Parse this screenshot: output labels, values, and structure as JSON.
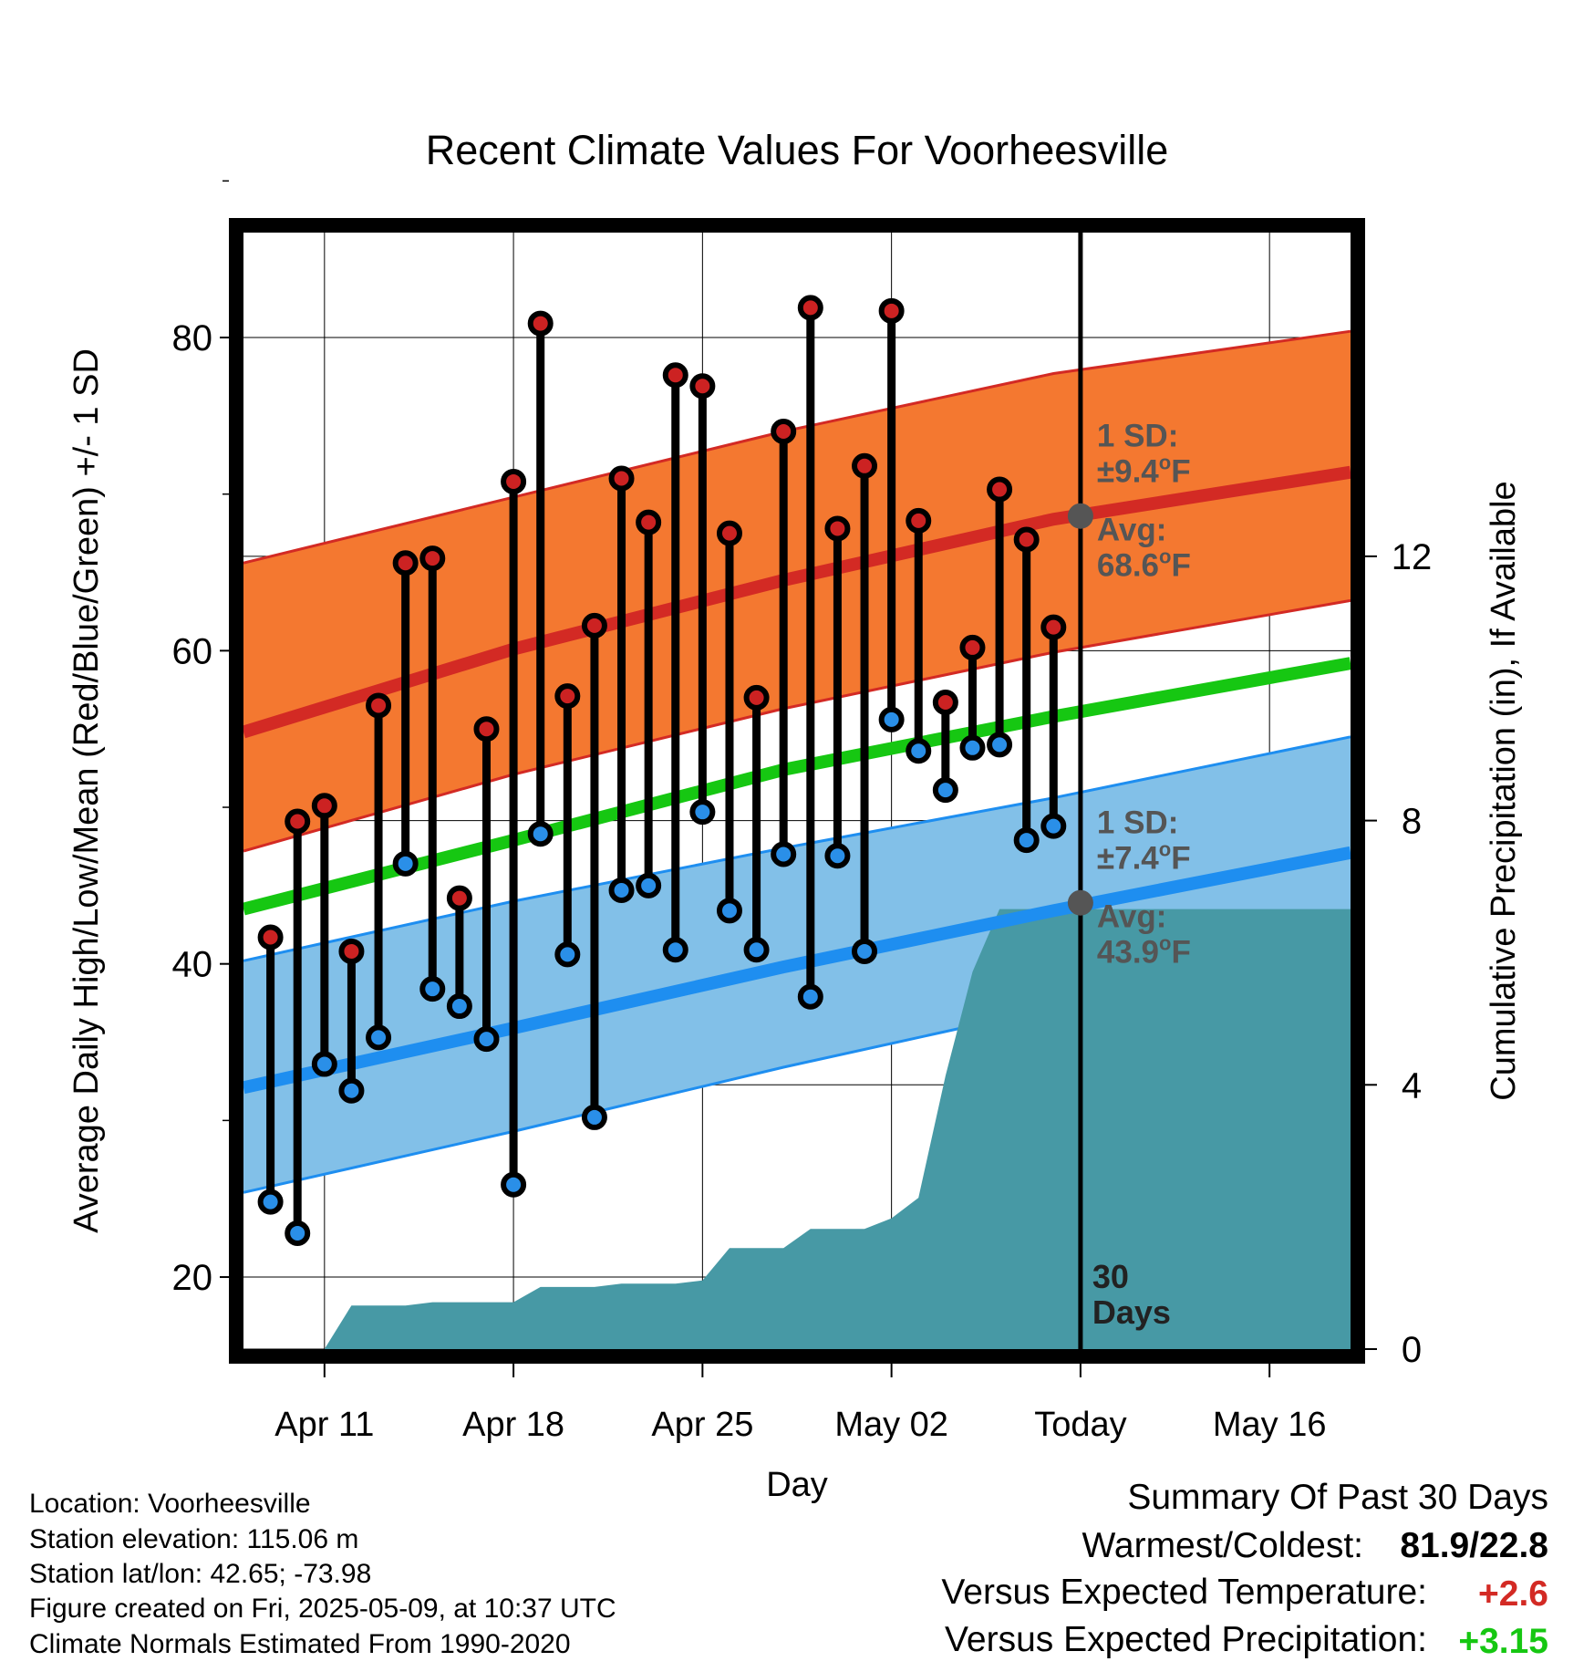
{
  "chart_data": {
    "type": "line",
    "title": "Recent Climate Values For Voorheesville",
    "xlabel": "Day",
    "ylabel": "Average Daily High/Low/Mean (Red/Blue/Green) +/- 1 SD",
    "y2label": "Cumulative Precipitation (in), If Available",
    "xlim": [
      "2025-04-08",
      "2025-05-19"
    ],
    "ylim": [
      15.4,
      86.7
    ],
    "y2lim": [
      0,
      16.9
    ],
    "x_ticks": [
      {
        "date": "2025-04-11",
        "label": "Apr 11"
      },
      {
        "date": "2025-04-18",
        "label": "Apr 18"
      },
      {
        "date": "2025-04-25",
        "label": "Apr 25"
      },
      {
        "date": "2025-05-02",
        "label": "May 02"
      },
      {
        "date": "2025-05-09",
        "label": "Today"
      },
      {
        "date": "2025-05-16",
        "label": "May 16"
      }
    ],
    "y_ticks": [
      "20",
      "40",
      "60",
      "80"
    ],
    "y2_ticks": [
      "0",
      "4",
      "8",
      "12"
    ],
    "grid": true,
    "daily": {
      "dates": [
        "2025-04-09",
        "2025-04-10",
        "2025-04-11",
        "2025-04-12",
        "2025-04-13",
        "2025-04-14",
        "2025-04-15",
        "2025-04-16",
        "2025-04-17",
        "2025-04-18",
        "2025-04-19",
        "2025-04-20",
        "2025-04-21",
        "2025-04-22",
        "2025-04-23",
        "2025-04-24",
        "2025-04-25",
        "2025-04-26",
        "2025-04-27",
        "2025-04-28",
        "2025-04-29",
        "2025-04-30",
        "2025-05-01",
        "2025-05-02",
        "2025-05-03",
        "2025-05-04",
        "2025-05-05",
        "2025-05-06",
        "2025-05-07",
        "2025-05-08"
      ],
      "highs": [
        41.7,
        49.1,
        50.1,
        40.8,
        56.5,
        65.6,
        65.9,
        44.2,
        55.0,
        70.8,
        80.9,
        57.1,
        61.6,
        71.0,
        68.2,
        77.6,
        76.9,
        67.5,
        57.0,
        74.0,
        81.9,
        67.8,
        71.8,
        81.7,
        68.3,
        56.7,
        60.2,
        70.3,
        67.1,
        61.5
      ],
      "lows": [
        24.8,
        22.8,
        33.6,
        31.9,
        35.3,
        46.4,
        38.4,
        37.3,
        35.2,
        25.9,
        48.3,
        40.6,
        30.2,
        44.7,
        45.0,
        40.9,
        49.7,
        43.4,
        40.9,
        47.0,
        37.9,
        46.9,
        40.8,
        55.6,
        53.6,
        51.1,
        53.8,
        54.0,
        47.9,
        48.8
      ]
    },
    "normals": {
      "dates": [
        "2025-04-08",
        "2025-04-18",
        "2025-04-28",
        "2025-05-08",
        "2025-05-19"
      ],
      "high_avg": [
        54.8,
        60.1,
        64.5,
        68.4,
        71.4
      ],
      "high_minus_sd": [
        47.2,
        52.1,
        56.3,
        59.9,
        63.2
      ],
      "high_plus_sd": [
        65.6,
        69.8,
        74.0,
        77.7,
        80.4
      ],
      "mean": [
        43.5,
        47.9,
        52.4,
        55.8,
        59.2
      ],
      "low_avg": [
        32.1,
        35.9,
        39.8,
        43.4,
        47.1
      ],
      "low_minus_sd": [
        25.4,
        29.3,
        33.4,
        37.2,
        41.0
      ],
      "low_plus_sd": [
        40.2,
        44.0,
        47.4,
        50.6,
        54.5
      ]
    },
    "precip": {
      "dates": [
        "2025-04-08",
        "2025-04-11",
        "2025-04-12",
        "2025-04-13",
        "2025-04-14",
        "2025-04-15",
        "2025-04-16",
        "2025-04-17",
        "2025-04-18",
        "2025-04-19",
        "2025-04-20",
        "2025-04-21",
        "2025-04-22",
        "2025-04-23",
        "2025-04-24",
        "2025-04-25",
        "2025-04-26",
        "2025-04-27",
        "2025-04-28",
        "2025-04-29",
        "2025-04-30",
        "2025-05-01",
        "2025-05-02",
        "2025-05-03",
        "2025-05-04",
        "2025-05-05",
        "2025-05-06",
        "2025-05-07",
        "2025-05-08",
        "2025-05-09",
        "2025-05-19"
      ],
      "cumulative": [
        0,
        0,
        0.66,
        0.66,
        0.66,
        0.71,
        0.71,
        0.71,
        0.71,
        0.94,
        0.94,
        0.94,
        0.99,
        0.99,
        0.99,
        1.04,
        1.53,
        1.53,
        1.53,
        1.82,
        1.82,
        1.82,
        1.98,
        2.29,
        4.14,
        5.71,
        6.66,
        6.66,
        6.66,
        6.66,
        6.66
      ]
    },
    "annotations": {
      "high": {
        "date": "2025-05-09",
        "value": 68.6,
        "sd_label": "1 SD:",
        "sd_value": "±9.4",
        "avg_label": "Avg:",
        "avg_value": "68.6",
        "unit": "F"
      },
      "low": {
        "date": "2025-05-09",
        "value": 43.9,
        "sd_label": "1 SD:",
        "sd_value": "±7.4",
        "avg_label": "Avg:",
        "avg_value": "43.9",
        "unit": "F"
      },
      "days_line1": "30",
      "days_line2": "Days"
    },
    "colors": {
      "high_band": "#f47830",
      "high_line": "#d32a24",
      "mean_line": "#16c712",
      "low_band": "#82c0e8",
      "low_line": "#1e8ef0",
      "precip": "#4799a5",
      "high_dot": "#cc2222",
      "low_dot": "#2a8fe8",
      "annotation": "#555555"
    }
  },
  "info": {
    "location": "Location: Voorheesville",
    "elevation": "Station elevation: 115.06 m",
    "latlon": "Station lat/lon: 42.65; -73.98",
    "created": "Figure created on Fri, 2025-05-09, at 10:37 UTC",
    "normals": "Climate Normals Estimated From 1990-2020"
  },
  "summary": {
    "title": "Summary Of Past 30 Days",
    "warm_cold_label": "Warmest/Coldest:",
    "warm_cold_value": "81.9/22.8",
    "temp_label": "Versus Expected Temperature:",
    "temp_value": "+2.6",
    "temp_color": "#d32a24",
    "precip_label": "Versus Expected Precipitation:",
    "precip_value": "+3.15",
    "precip_color": "#16c712"
  }
}
